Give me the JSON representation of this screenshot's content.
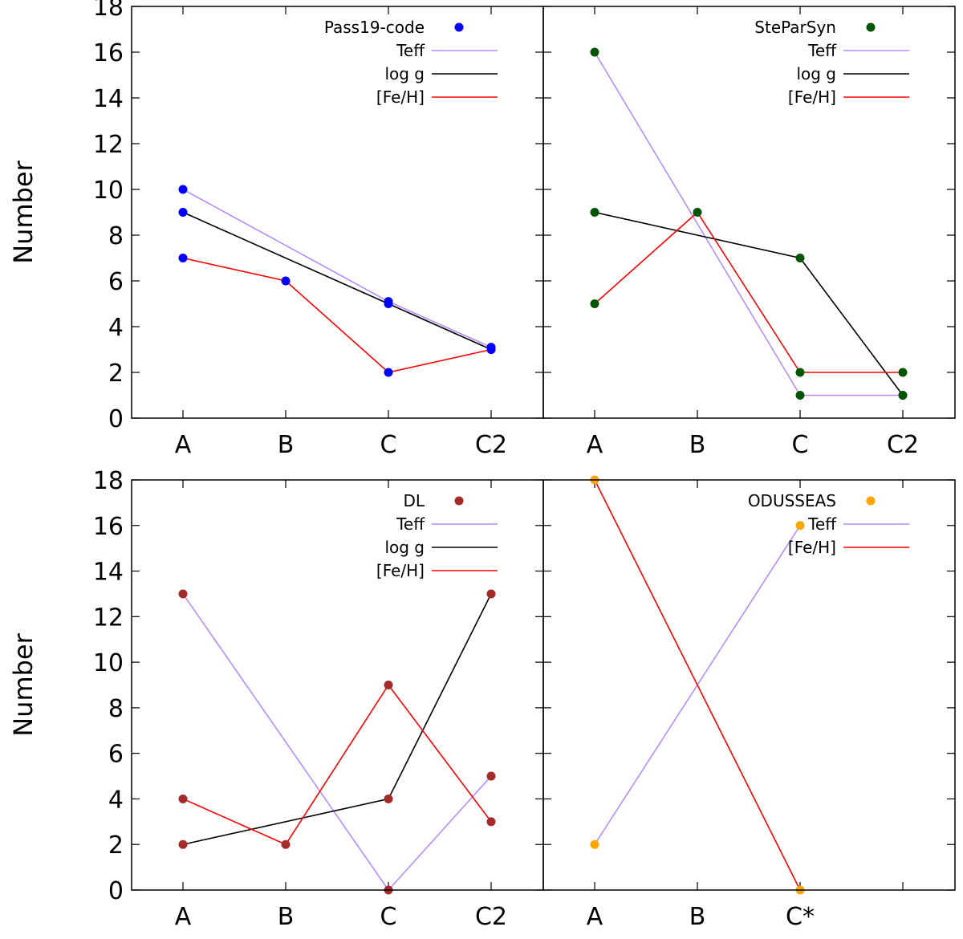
{
  "chart_data": [
    {
      "type": "line",
      "panel": "top-left",
      "categories": [
        "A",
        "B",
        "C",
        "C2"
      ],
      "ylabel": "Number",
      "ylim": [
        0,
        18
      ],
      "yticks": [
        0,
        2,
        4,
        6,
        8,
        10,
        12,
        14,
        16,
        18
      ],
      "legend_position": "top-right",
      "marker_name": "Pass19-code",
      "marker_color": "#0000ff",
      "series": [
        {
          "name": "Teff",
          "color": "#b58cff",
          "values": [
            10,
            null,
            5.1,
            3.1
          ]
        },
        {
          "name": "log g",
          "color": "#000000",
          "values": [
            9,
            null,
            5,
            3
          ]
        },
        {
          "name": "[Fe/H]",
          "color": "#ff0000",
          "values": [
            7,
            6,
            2,
            3
          ]
        }
      ]
    },
    {
      "type": "line",
      "panel": "top-right",
      "categories": [
        "A",
        "B",
        "C",
        "C2"
      ],
      "ylabel": "",
      "ylim": [
        0,
        18
      ],
      "yticks": [
        0,
        2,
        4,
        6,
        8,
        10,
        12,
        14,
        16,
        18
      ],
      "legend_position": "top-right",
      "marker_name": "SteParSyn",
      "marker_color": "#005500",
      "series": [
        {
          "name": "Teff",
          "color": "#b58cff",
          "values": [
            16,
            null,
            1,
            1
          ]
        },
        {
          "name": "log g",
          "color": "#000000",
          "values": [
            9,
            null,
            7,
            1
          ]
        },
        {
          "name": "[Fe/H]",
          "color": "#ff0000",
          "values": [
            5,
            9,
            2,
            2
          ]
        }
      ]
    },
    {
      "type": "line",
      "panel": "bottom-left",
      "categories": [
        "A",
        "B",
        "C",
        "C2"
      ],
      "ylabel": "Number",
      "ylim": [
        0,
        18
      ],
      "yticks": [
        0,
        2,
        4,
        6,
        8,
        10,
        12,
        14,
        16,
        18
      ],
      "legend_position": "top-right",
      "marker_name": "DL",
      "marker_color": "#a52a2a",
      "series": [
        {
          "name": "Teff",
          "color": "#b58cff",
          "values": [
            13,
            null,
            0,
            5
          ]
        },
        {
          "name": "log g",
          "color": "#000000",
          "values": [
            2,
            null,
            4,
            13
          ]
        },
        {
          "name": "[Fe/H]",
          "color": "#ff0000",
          "values": [
            4,
            2,
            9,
            3
          ]
        }
      ]
    },
    {
      "type": "line",
      "panel": "bottom-right",
      "categories": [
        "A",
        "B",
        "C*",
        ""
      ],
      "ylabel": "",
      "ylim": [
        0,
        18
      ],
      "yticks": [
        0,
        2,
        4,
        6,
        8,
        10,
        12,
        14,
        16,
        18
      ],
      "legend_position": "top-right",
      "marker_name": "ODUSSEAS",
      "marker_color": "#ffa500",
      "series": [
        {
          "name": "Teff",
          "color": "#b58cff",
          "values": [
            2,
            null,
            16,
            null
          ]
        },
        {
          "name": "[Fe/H]",
          "color": "#ff0000",
          "values": [
            18,
            null,
            0,
            null
          ]
        }
      ]
    }
  ]
}
